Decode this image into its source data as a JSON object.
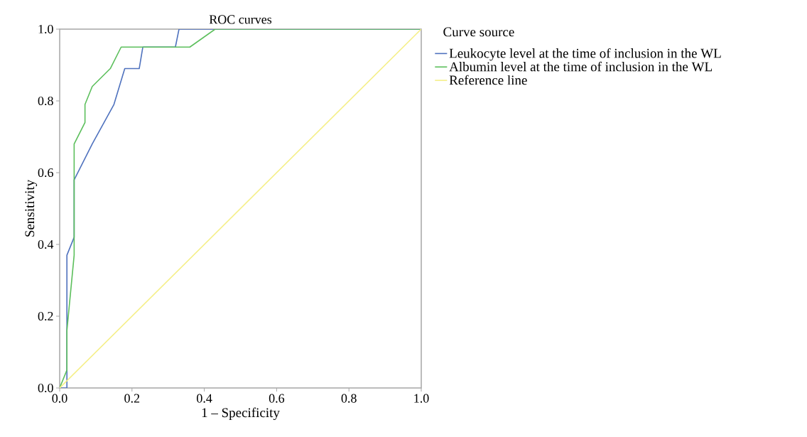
{
  "chart_data": {
    "type": "line",
    "title": "ROC curves",
    "xlabel": "1 – Specificity",
    "ylabel": "Sensitivity",
    "legend_title": "Curve source",
    "legend": "right",
    "xlim": [
      0,
      1
    ],
    "ylim": [
      0,
      1
    ],
    "xticks": [
      {
        "value": 0,
        "label": "0.0"
      },
      {
        "value": 0.2,
        "label": "0.2"
      },
      {
        "value": 0.4,
        "label": "0.4"
      },
      {
        "value": 0.6,
        "label": "0.6"
      },
      {
        "value": 0.8,
        "label": "0.8"
      },
      {
        "value": 1,
        "label": "1.0"
      }
    ],
    "yticks": [
      {
        "value": 0,
        "label": "0.0"
      },
      {
        "value": 0.2,
        "label": "0.2"
      },
      {
        "value": 0.4,
        "label": "0.4"
      },
      {
        "value": 0.6,
        "label": "0.6"
      },
      {
        "value": 0.8,
        "label": "0.8"
      },
      {
        "value": 1,
        "label": "1.0"
      }
    ],
    "grid": false,
    "marker": "none",
    "line_style": "solid",
    "series": [
      {
        "name": "Leukocyte level at the time of inclusion in the WL",
        "color": "#4f72be",
        "x": [
          0,
          0.02,
          0.02,
          0.04,
          0.04,
          0.09,
          0.15,
          0.18,
          0.22,
          0.23,
          0.32,
          0.33,
          1
        ],
        "values": [
          0,
          0,
          0.37,
          0.42,
          0.58,
          0.68,
          0.79,
          0.89,
          0.89,
          0.95,
          0.95,
          1,
          1
        ]
      },
      {
        "name": "Albumin level at the time of inclusion in the WL",
        "color": "#5cbf5c",
        "x": [
          0,
          0.02,
          0.02,
          0.04,
          0.04,
          0.07,
          0.07,
          0.09,
          0.14,
          0.17,
          0.36,
          0.43,
          1
        ],
        "values": [
          0,
          0.05,
          0.16,
          0.37,
          0.68,
          0.74,
          0.79,
          0.84,
          0.89,
          0.95,
          0.95,
          1,
          1
        ]
      },
      {
        "name": "Reference line",
        "color": "#f5ef88",
        "x": [
          0,
          1
        ],
        "values": [
          0,
          1
        ]
      }
    ]
  }
}
